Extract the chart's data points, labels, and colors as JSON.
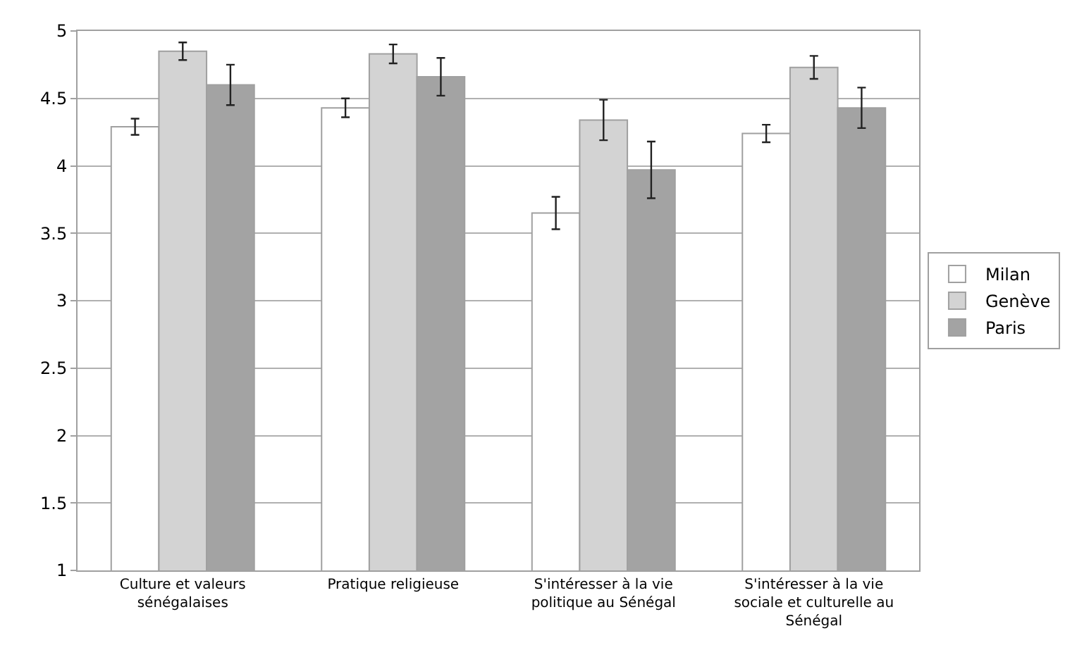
{
  "chart_data": {
    "type": "bar",
    "categories": [
      "Culture et valeurs sénégalaises",
      "Pratique religieuse",
      "S'intéresser à la vie politique au Sénégal",
      "S'intéresser à la vie sociale et culturelle au Sénégal"
    ],
    "series": [
      {
        "name": "Milan",
        "color": "#ffffff",
        "values": [
          4.29,
          4.43,
          3.65,
          4.24
        ],
        "errors": [
          0.06,
          0.07,
          0.12,
          0.065
        ]
      },
      {
        "name": "Genève",
        "color": "#d3d3d3",
        "values": [
          4.85,
          4.83,
          4.34,
          4.73
        ],
        "errors": [
          0.065,
          0.07,
          0.15,
          0.085
        ]
      },
      {
        "name": "Paris",
        "color": "#a3a3a3",
        "values": [
          4.6,
          4.66,
          3.97,
          4.43
        ],
        "errors": [
          0.15,
          0.14,
          0.21,
          0.15
        ]
      }
    ],
    "ylim": [
      1,
      5
    ],
    "yticks": [
      1,
      1.5,
      2,
      2.5,
      3,
      3.5,
      4,
      4.5,
      5
    ],
    "grid": "y",
    "legend": "right"
  }
}
